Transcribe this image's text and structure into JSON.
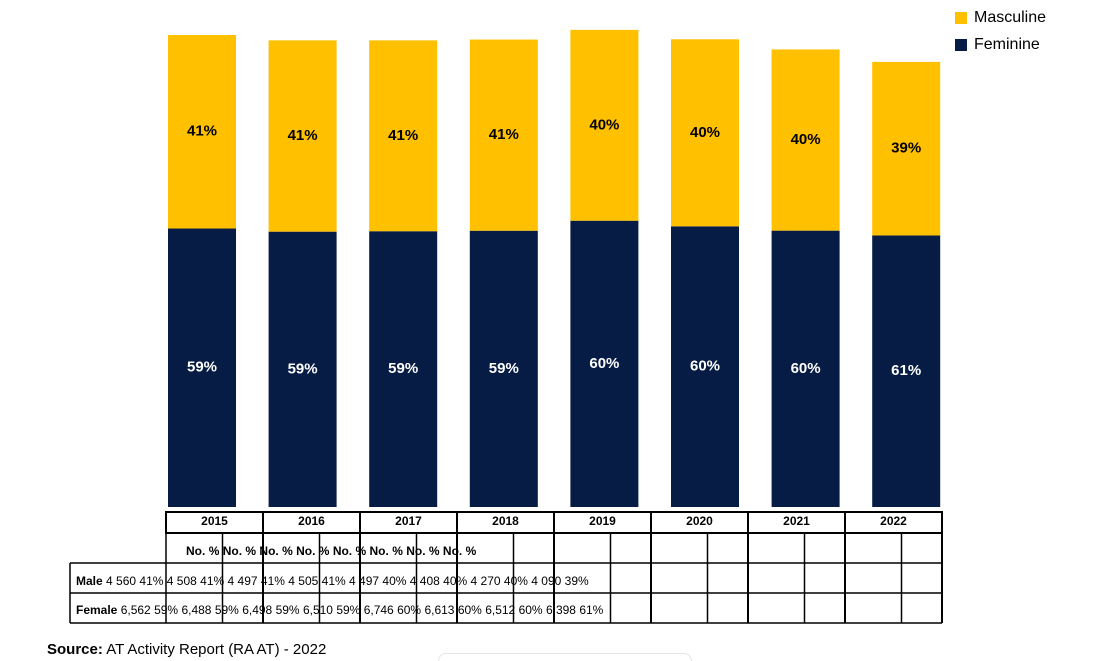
{
  "chart_data": {
    "type": "stacked-bar",
    "categories": [
      "2015",
      "2016",
      "2017",
      "2018",
      "2019",
      "2020",
      "2021",
      "2022"
    ],
    "series": [
      {
        "name": "Feminine",
        "color": "#061c45",
        "label_color": "#ffffff",
        "values": [
          59,
          59,
          59,
          59,
          60,
          60,
          60,
          61
        ],
        "value_labels": [
          "59%",
          "59%",
          "59%",
          "59%",
          "60%",
          "60%",
          "60%",
          "61%"
        ],
        "counts": [
          6562,
          6488,
          6498,
          6510,
          6746,
          6613,
          6512,
          6398
        ]
      },
      {
        "name": "Masculine",
        "color": "#ffc000",
        "label_color": "#000000",
        "values": [
          41,
          41,
          41,
          41,
          40,
          40,
          40,
          39
        ],
        "value_labels": [
          "41%",
          "41%",
          "41%",
          "41%",
          "40%",
          "40%",
          "40%",
          "39%"
        ],
        "counts": [
          4560,
          4508,
          4497,
          4505,
          4497,
          4408,
          4270,
          4090
        ]
      }
    ],
    "legend": "top-right"
  },
  "table": {
    "subheaders": [
      "No.",
      "%"
    ],
    "rows": [
      {
        "label": "Male",
        "counts": [
          "4 560",
          "4 508",
          "4 497",
          "4 505",
          "4 497",
          "4 408",
          "4 270",
          "4 090"
        ]
      },
      {
        "label": "Female",
        "counts": [
          "6,562",
          "6,488",
          "6,498",
          "6,510",
          "6,746",
          "6,613",
          "6,512",
          "6,398"
        ]
      }
    ]
  },
  "source": {
    "label": "Source:",
    "text": "AT Activity Report (RA AT) - 2022"
  }
}
